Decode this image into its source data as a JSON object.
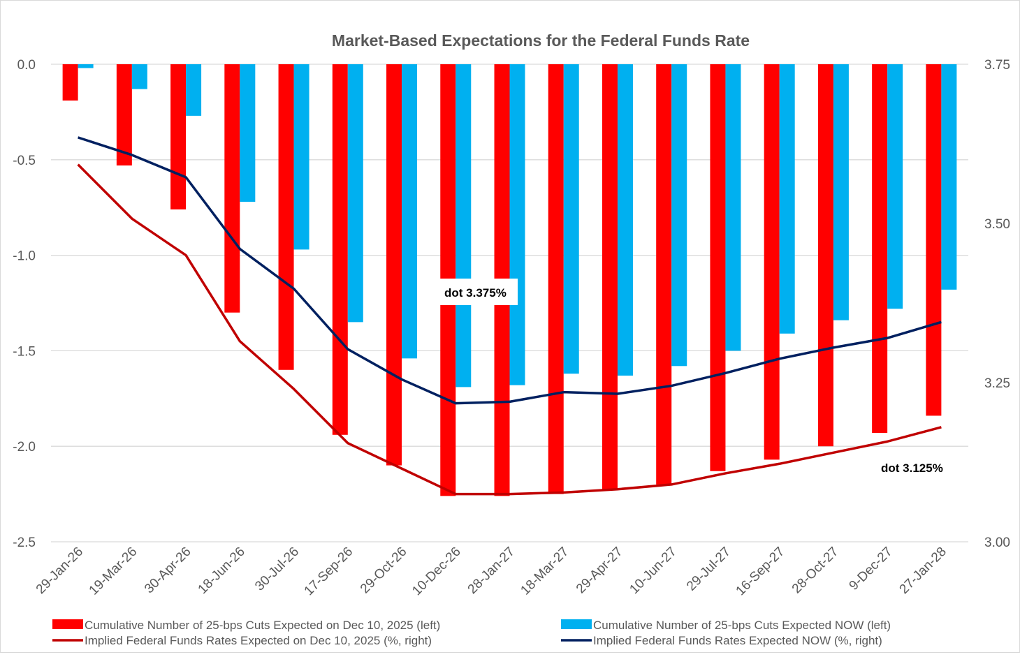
{
  "chart_data": {
    "type": "bar",
    "title": "Market-Based Expectations for the Federal Funds Rate",
    "categories": [
      "29-Jan-26",
      "19-Mar-26",
      "30-Apr-26",
      "18-Jun-26",
      "30-Jul-26",
      "17-Sep-26",
      "29-Oct-26",
      "10-Dec-26",
      "28-Jan-27",
      "18-Mar-27",
      "29-Apr-27",
      "10-Jun-27",
      "29-Jul-27",
      "16-Sep-27",
      "28-Oct-27",
      "9-Dec-27",
      "27-Jan-28"
    ],
    "left_axis": {
      "ylim": [
        -2.5,
        0.0
      ],
      "ticks": [
        "0.0",
        "-0.5",
        "-1.0",
        "-1.5",
        "-2.0",
        "-2.5"
      ],
      "tick_values": [
        0,
        -0.5,
        -1,
        -1.5,
        -2,
        -2.5
      ]
    },
    "right_axis": {
      "ylim": [
        3.0,
        3.75
      ],
      "ticks": [
        "3.75",
        "3.50",
        "3.25",
        "3.00"
      ],
      "tick_values": [
        3.75,
        3.5,
        3.25,
        3.0
      ]
    },
    "grid": true,
    "legend_position": "bottom",
    "series": [
      {
        "name": "Cumulative Number of 25-bps Cuts Expected on Dec 10, 2025 (left)",
        "type": "bar",
        "axis": "left",
        "color": "#ff0000",
        "values": [
          -0.19,
          -0.53,
          -0.76,
          -1.3,
          -1.6,
          -1.94,
          -2.1,
          -2.26,
          -2.26,
          -2.25,
          -2.23,
          -2.2,
          -2.13,
          -2.07,
          -2.0,
          -1.93,
          -1.84
        ]
      },
      {
        "name": "Cumulative Number of 25-bps Cuts Expected NOW (left)",
        "type": "bar",
        "axis": "left",
        "color": "#00b0f0",
        "values": [
          -0.02,
          -0.13,
          -0.27,
          -0.72,
          -0.97,
          -1.35,
          -1.54,
          -1.69,
          -1.68,
          -1.62,
          -1.63,
          -1.58,
          -1.5,
          -1.41,
          -1.34,
          -1.28,
          -1.18
        ]
      },
      {
        "name": "Implied Federal Funds Rates Expected on Dec 10, 2025 (%, right)",
        "type": "line",
        "axis": "right",
        "color": "#c00000",
        "values": [
          3.5925,
          3.5075,
          3.45,
          3.315,
          3.24,
          3.155,
          3.115,
          3.075,
          3.075,
          3.0775,
          3.0825,
          3.09,
          3.1075,
          3.1225,
          3.14,
          3.1575,
          3.18
        ]
      },
      {
        "name": "Implied Federal Funds Rates Expected NOW (%, right)",
        "type": "line",
        "axis": "right",
        "color": "#002060",
        "values": [
          3.635,
          3.6075,
          3.5725,
          3.46,
          3.3975,
          3.3025,
          3.255,
          3.2175,
          3.22,
          3.235,
          3.2325,
          3.245,
          3.265,
          3.2875,
          3.305,
          3.32,
          3.345
        ]
      }
    ],
    "annotations": [
      {
        "text": "dot 3.375%",
        "near_category": "10-Dec-26"
      },
      {
        "text": "dot 3.125%",
        "near_category": "27-Jan-28"
      }
    ]
  }
}
